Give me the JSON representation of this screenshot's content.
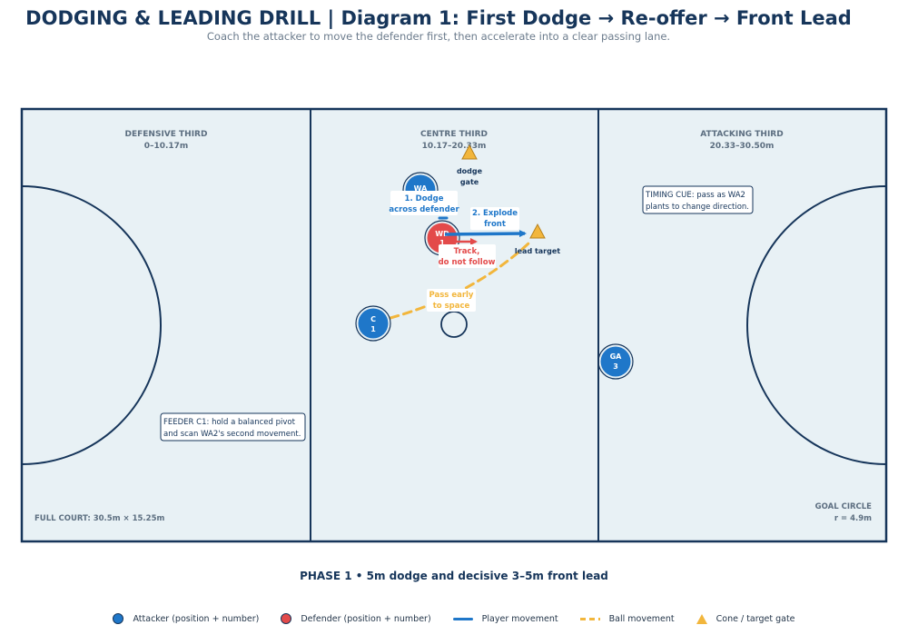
{
  "title": "DODGING & LEADING DRILL  |  Diagram 1: First Dodge → Re-offer → Front Lead",
  "subtitle": "Coach the attacker to move the defender first, then accelerate into a clear passing lane.",
  "court": {
    "zones": [
      {
        "name": "DEFENSIVE THIRD",
        "range": "0–10.17m"
      },
      {
        "name": "CENTRE THIRD",
        "range": "10.17–20.33m"
      },
      {
        "name": "ATTACKING THIRD",
        "range": "20.33–30.50m"
      }
    ],
    "full_court_label": "FULL COURT: 30.5m × 15.25m",
    "goal_circle_label": "GOAL CIRCLE",
    "goal_circle_radius": "r = 4.9m"
  },
  "players": {
    "wa": {
      "position": "WA",
      "number": "2"
    },
    "wd": {
      "position": "WD",
      "number": "1"
    },
    "c": {
      "position": "C",
      "number": "1"
    },
    "ga": {
      "position": "GA",
      "number": "3"
    }
  },
  "cones": {
    "dodge_gate_line1": "dodge",
    "dodge_gate_line2": "gate",
    "lead_target": "lead target"
  },
  "annotations": {
    "dodge_line1": "1. Dodge",
    "dodge_line2": "across defender",
    "explode_line1": "2. Explode",
    "explode_line2": "front",
    "track_line1": "Track,",
    "track_line2": "do not follow",
    "pass_line1": "Pass early",
    "pass_line2": "to space",
    "timing_line1": "TIMING CUE: pass as WA2",
    "timing_line2": "plants to change direction.",
    "feeder_line1": "FEEDER C1: hold a balanced pivot",
    "feeder_line2": "and scan WA2's second movement."
  },
  "phase": "PHASE 1  •  5m dodge and decisive 3–5m front lead",
  "legend": {
    "attacker": "Attacker (position + number)",
    "defender": "Defender (position + number)",
    "player_movement": "Player movement",
    "ball_movement": "Ball movement",
    "cone": "Cone / target gate"
  },
  "colors": {
    "court_fill": "#e8f1f5",
    "court_line": "#16355a",
    "attacker": "#1f77c9",
    "defender": "#e34a4a",
    "ball": "#f2b63c",
    "cone": "#f2b63c"
  }
}
